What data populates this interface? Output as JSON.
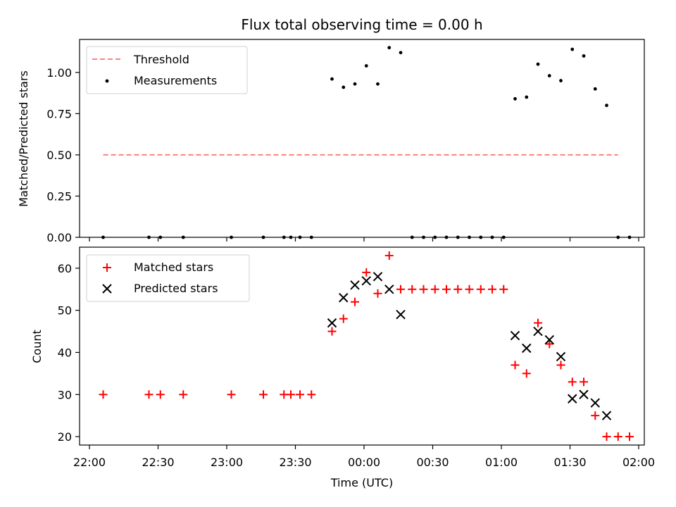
{
  "chart_data": [
    {
      "type": "scatter",
      "title": "Flux total observing time = 0.00 h",
      "xlabel": "",
      "ylabel": "Matched/Predicted stars",
      "ylim": [
        0,
        1.2
      ],
      "yticks": [
        "0.00",
        "0.25",
        "0.50",
        "0.75",
        "1.00"
      ],
      "grid": false,
      "legend_location": "upper-left",
      "series": [
        {
          "name": "Threshold",
          "kind": "dashed-line",
          "color": "#ff7f7f",
          "x": [
            "22:06",
            "01:51"
          ],
          "y": [
            0.5,
            0.5
          ]
        },
        {
          "name": "Measurements",
          "kind": "dot",
          "color": "#000000",
          "points": [
            [
              "22:06",
              0.0
            ],
            [
              "22:26",
              0.0
            ],
            [
              "22:31",
              0.0
            ],
            [
              "22:41",
              0.0
            ],
            [
              "23:02",
              0.0
            ],
            [
              "23:16",
              0.0
            ],
            [
              "23:25",
              0.0
            ],
            [
              "23:28",
              0.0
            ],
            [
              "23:32",
              0.0
            ],
            [
              "23:37",
              0.0
            ],
            [
              "23:46",
              0.96
            ],
            [
              "23:51",
              0.91
            ],
            [
              "23:56",
              0.93
            ],
            [
              "00:01",
              1.04
            ],
            [
              "00:06",
              0.93
            ],
            [
              "00:11",
              1.15
            ],
            [
              "00:16",
              1.12
            ],
            [
              "00:21",
              0.0
            ],
            [
              "00:26",
              0.0
            ],
            [
              "00:31",
              0.0
            ],
            [
              "00:36",
              0.0
            ],
            [
              "00:41",
              0.0
            ],
            [
              "00:46",
              0.0
            ],
            [
              "00:51",
              0.0
            ],
            [
              "00:56",
              0.0
            ],
            [
              "01:01",
              0.0
            ],
            [
              "01:06",
              0.84
            ],
            [
              "01:11",
              0.85
            ],
            [
              "01:16",
              1.05
            ],
            [
              "01:21",
              0.98
            ],
            [
              "01:26",
              0.95
            ],
            [
              "01:31",
              1.14
            ],
            [
              "01:36",
              1.1
            ],
            [
              "01:41",
              0.9
            ],
            [
              "01:46",
              0.8
            ],
            [
              "01:51",
              0.0
            ],
            [
              "01:56",
              0.0
            ]
          ]
        }
      ]
    },
    {
      "type": "scatter",
      "title": "",
      "xlabel": "Time (UTC)",
      "ylabel": "Count",
      "ylim": [
        18,
        65
      ],
      "yticks": [
        "20",
        "30",
        "40",
        "50",
        "60"
      ],
      "xticks": [
        "22:00",
        "22:30",
        "23:00",
        "23:30",
        "00:00",
        "00:30",
        "01:00",
        "01:30",
        "02:00"
      ],
      "grid": false,
      "legend_location": "upper-left",
      "series": [
        {
          "name": "Matched stars",
          "kind": "plus",
          "color": "#ff0000",
          "points": [
            [
              "22:06",
              30
            ],
            [
              "22:26",
              30
            ],
            [
              "22:31",
              30
            ],
            [
              "22:41",
              30
            ],
            [
              "23:02",
              30
            ],
            [
              "23:16",
              30
            ],
            [
              "23:25",
              30
            ],
            [
              "23:28",
              30
            ],
            [
              "23:32",
              30
            ],
            [
              "23:37",
              30
            ],
            [
              "23:46",
              45
            ],
            [
              "23:51",
              48
            ],
            [
              "23:56",
              52
            ],
            [
              "00:01",
              59
            ],
            [
              "00:06",
              54
            ],
            [
              "00:11",
              63
            ],
            [
              "00:16",
              55
            ],
            [
              "00:21",
              55
            ],
            [
              "00:26",
              55
            ],
            [
              "00:31",
              55
            ],
            [
              "00:36",
              55
            ],
            [
              "00:41",
              55
            ],
            [
              "00:46",
              55
            ],
            [
              "00:51",
              55
            ],
            [
              "00:56",
              55
            ],
            [
              "01:01",
              55
            ],
            [
              "01:06",
              37
            ],
            [
              "01:11",
              35
            ],
            [
              "01:16",
              47
            ],
            [
              "01:21",
              42
            ],
            [
              "01:26",
              37
            ],
            [
              "01:31",
              33
            ],
            [
              "01:36",
              33
            ],
            [
              "01:41",
              25
            ],
            [
              "01:46",
              20
            ],
            [
              "01:51",
              20
            ],
            [
              "01:56",
              20
            ]
          ]
        },
        {
          "name": "Predicted stars",
          "kind": "x",
          "color": "#000000",
          "points": [
            [
              "23:46",
              47
            ],
            [
              "23:51",
              53
            ],
            [
              "23:56",
              56
            ],
            [
              "00:01",
              57
            ],
            [
              "00:06",
              58
            ],
            [
              "00:11",
              55
            ],
            [
              "00:16",
              49
            ],
            [
              "01:06",
              44
            ],
            [
              "01:11",
              41
            ],
            [
              "01:16",
              45
            ],
            [
              "01:21",
              43
            ],
            [
              "01:26",
              39
            ],
            [
              "01:31",
              29
            ],
            [
              "01:36",
              30
            ],
            [
              "01:41",
              28
            ],
            [
              "01:46",
              25
            ]
          ]
        }
      ]
    }
  ]
}
